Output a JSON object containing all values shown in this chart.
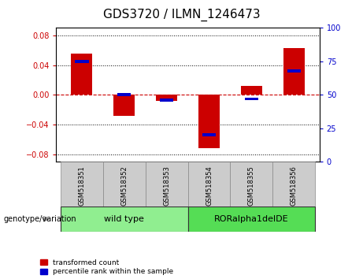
{
  "title": "GDS3720 / ILMN_1246473",
  "samples": [
    "GSM518351",
    "GSM518352",
    "GSM518353",
    "GSM518354",
    "GSM518355",
    "GSM518356"
  ],
  "red_values": [
    0.055,
    -0.028,
    -0.008,
    -0.072,
    0.012,
    0.063
  ],
  "blue_values_pct": [
    75,
    50,
    46,
    20,
    47,
    68
  ],
  "groups": [
    {
      "label": "wild type",
      "indices": [
        0,
        1,
        2
      ],
      "color": "#90EE90"
    },
    {
      "label": "RORalpha1delDE",
      "indices": [
        3,
        4,
        5
      ],
      "color": "#55DD55"
    }
  ],
  "ylim_left": [
    -0.09,
    0.09
  ],
  "ylim_right": [
    0,
    100
  ],
  "yticks_left": [
    -0.08,
    -0.04,
    0,
    0.04,
    0.08
  ],
  "yticks_right": [
    0,
    25,
    50,
    75,
    100
  ],
  "red_color": "#CC0000",
  "blue_color": "#0000CC",
  "bar_width": 0.5,
  "genotype_label": "genotype/variation",
  "legend_red": "transformed count",
  "legend_blue": "percentile rank within the sample",
  "background_color": "#FFFFFF",
  "plot_bg": "#FFFFFF",
  "zero_line_color": "#CC0000",
  "title_fontsize": 11,
  "tick_fontsize": 7,
  "label_fontsize": 7,
  "sample_fontsize": 6,
  "group_fontsize": 8
}
